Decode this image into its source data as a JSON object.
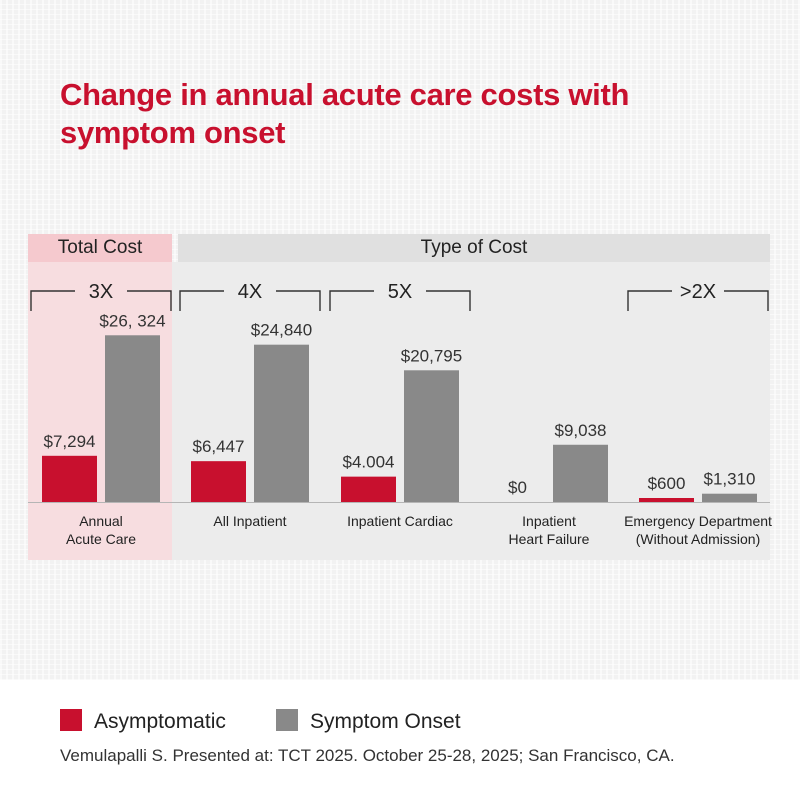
{
  "title": "Change in annual acute care costs with symptom onset",
  "headers": {
    "total": "Total Cost",
    "type": "Type of Cost"
  },
  "colors": {
    "asymptomatic": "#c8102e",
    "symptom_onset": "#898989",
    "accent": "#c8102e"
  },
  "chart_data": {
    "type": "bar",
    "categories": [
      "Annual\nAcute Care",
      "All Inpatient",
      "Inpatient Cardiac",
      "Inpatient\nHeart Failure",
      "Emergency Department\n(Without Admission)"
    ],
    "series": [
      {
        "name": "Asymptomatic",
        "values": [
          7294,
          6447,
          4004,
          0,
          600
        ],
        "labels": [
          "$7,294",
          "$6,447",
          "$4.004",
          "$0",
          "$600"
        ]
      },
      {
        "name": "Symptom Onset",
        "values": [
          26324,
          24840,
          20795,
          9038,
          1310
        ],
        "labels": [
          "$26, 324",
          "$24,840",
          "$20,795",
          "$9,038",
          "$1,310"
        ]
      }
    ],
    "multipliers": [
      {
        "label": "3X",
        "category": 0
      },
      {
        "label": "4X",
        "category": 1
      },
      {
        "label": "5X",
        "category": 2
      },
      {
        "label": ">2X",
        "category": 4
      }
    ],
    "xlabel": "",
    "ylabel": "",
    "ylim": [
      0,
      30000
    ]
  },
  "legend": {
    "asymptomatic": "Asymptomatic",
    "symptom_onset": "Symptom Onset"
  },
  "source": "Vemulapalli S. Presented at: TCT 2025. October 25-28, 2025; San Francisco, CA."
}
